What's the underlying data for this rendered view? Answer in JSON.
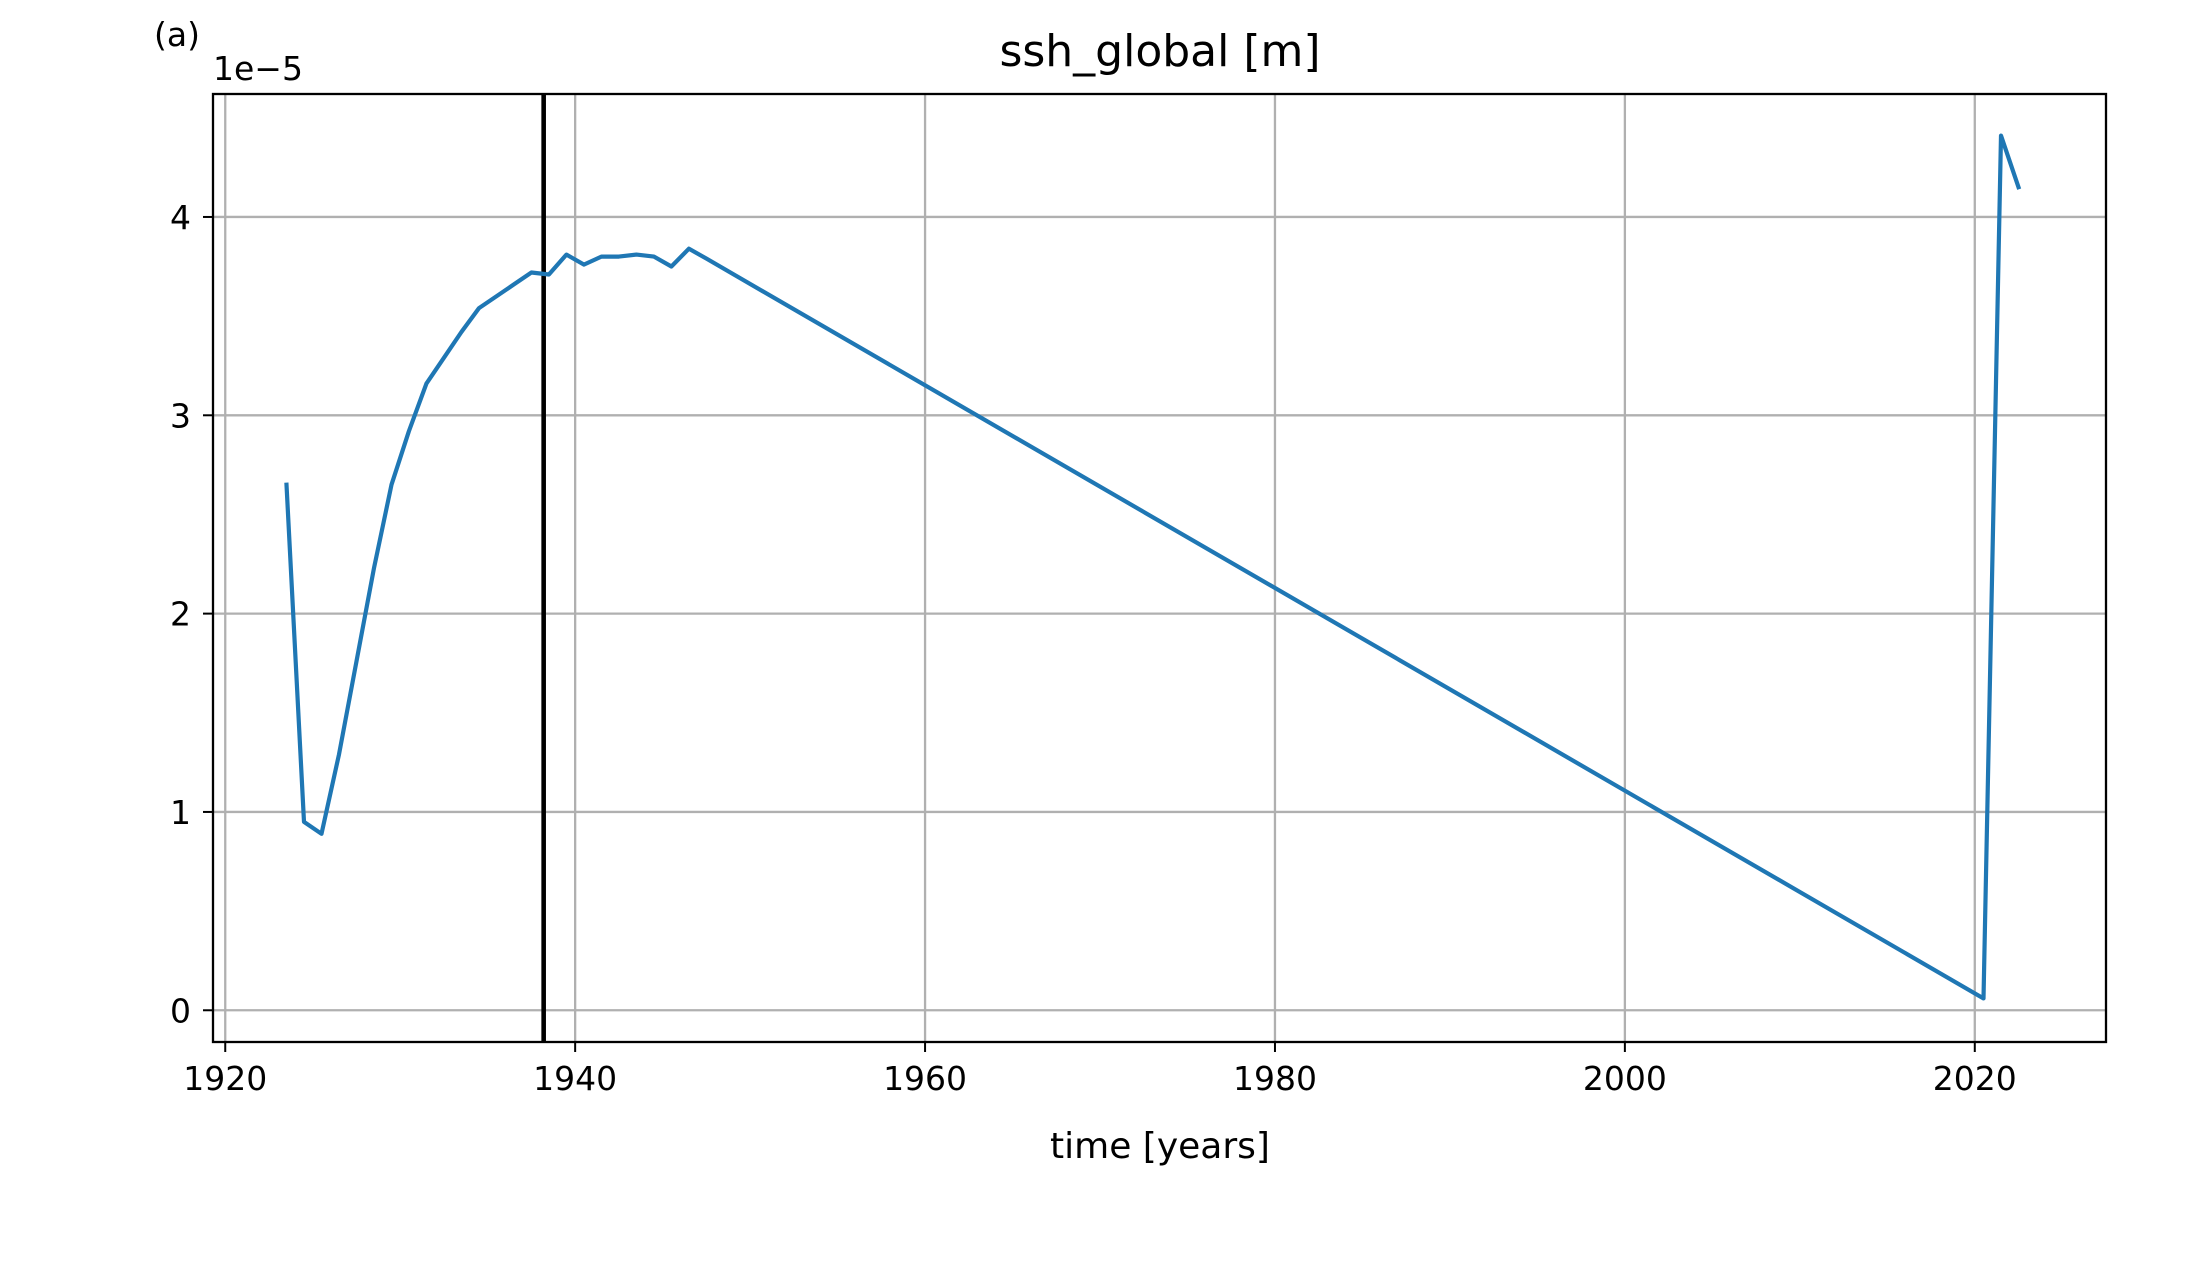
{
  "panel_label": "(a)",
  "chart_data": {
    "type": "line",
    "title": "ssh_global [m]",
    "xlabel": "time [years]",
    "ylabel": "",
    "y_offset_label": "1e−5",
    "y_scale_factor": 1e-05,
    "xlim": [
      1919.3,
      2027.5
    ],
    "ylim": [
      -0.16,
      4.62
    ],
    "x_ticks": [
      1920,
      1940,
      1960,
      1980,
      2000,
      2020
    ],
    "x_tick_labels": [
      "1920",
      "1940",
      "1960",
      "1980",
      "2000",
      "2020"
    ],
    "y_ticks": [
      0,
      1,
      2,
      3,
      4
    ],
    "y_tick_labels": [
      "0",
      "1",
      "2",
      "3",
      "4"
    ],
    "grid": true,
    "series": [
      {
        "color": "#1f77b4",
        "x": [
          1923.5,
          1924.5,
          1925.5,
          1926.5,
          1927.5,
          1928.5,
          1929.5,
          1930.5,
          1931.5,
          1932.5,
          1933.5,
          1934.5,
          1935.5,
          1936.5,
          1937.5,
          1938.5,
          1939.5,
          1940.5,
          1941.5,
          1942.5,
          1943.5,
          1944.5,
          1945.5,
          1946.5,
          1947.5,
          2020.5,
          2021.5,
          2022.5
        ],
        "y": [
          2.65,
          0.95,
          0.89,
          1.29,
          1.76,
          2.23,
          2.65,
          2.92,
          3.16,
          3.29,
          3.42,
          3.54,
          3.6,
          3.66,
          3.72,
          3.71,
          3.81,
          3.76,
          3.8,
          3.8,
          3.81,
          3.8,
          3.75,
          3.84,
          3.79,
          0.06,
          4.41,
          4.15
        ]
      }
    ],
    "vertical_lines": [
      {
        "x": 1938.2,
        "color": "#000000"
      }
    ]
  }
}
